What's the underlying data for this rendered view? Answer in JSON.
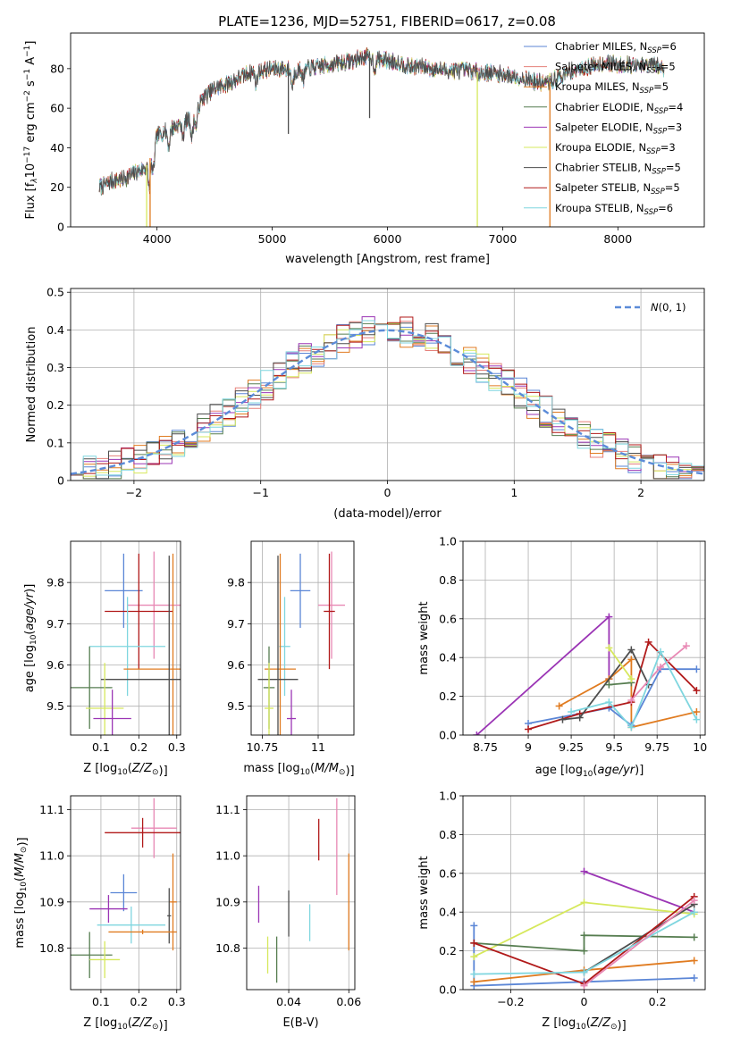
{
  "figure_title": "PLATE=1236, MJD=52751, FIBERID=0617, z=0.08",
  "colors": {
    "Chabrier MILES": "#5b86d6",
    "Salpeter MILES": "#e5807a",
    "Kroupa MILES": "#e07b20",
    "Chabrier ELODIE": "#567d50",
    "Salpeter ELODIE": "#9b35b5",
    "Kroupa ELODIE": "#d6e85c",
    "Chabrier STELIB": "#4d4d4d",
    "Salpeter STELIB": "#b11a1a",
    "Kroupa STELIB": "#7fd6df",
    "pink": "#e888b4",
    "normal_curve": "#5b8bd8",
    "grid": "#b0b0b0"
  },
  "chart_data": [
    {
      "panel": "spectrum",
      "type": "line",
      "xlabel_plain": "wavelength [Angstrom, rest frame]",
      "ylabel_parts": [
        "Flux [f",
        "λ",
        "10",
        "−17",
        " erg cm",
        "−2",
        " s",
        "−1",
        " A",
        "−1",
        "]"
      ],
      "xlim": [
        3250,
        8750
      ],
      "ylim": [
        0,
        98
      ],
      "xticks": [
        4000,
        5000,
        6000,
        7000,
        8000
      ],
      "yticks": [
        0,
        20,
        40,
        60,
        80
      ],
      "grid": false,
      "legend_position": "top-right",
      "legend": [
        {
          "label": "Chabrier MILES, N",
          "sub": "SSP",
          "suffix": "=6"
        },
        {
          "label": "Salpeter MILES, N",
          "sub": "SSP",
          "suffix": "=5"
        },
        {
          "label": "Kroupa MILES, N",
          "sub": "SSP",
          "suffix": "=5"
        },
        {
          "label": "Chabrier ELODIE, N",
          "sub": "SSP",
          "suffix": "=4"
        },
        {
          "label": "Salpeter ELODIE, N",
          "sub": "SSP",
          "suffix": "=3"
        },
        {
          "label": "Kroupa ELODIE, N",
          "sub": "SSP",
          "suffix": "=3"
        },
        {
          "label": "Chabrier STELIB, N",
          "sub": "SSP",
          "suffix": "=5"
        },
        {
          "label": "Salpeter STELIB, N",
          "sub": "SSP",
          "suffix": "=5"
        },
        {
          "label": "Kroupa STELIB, N",
          "sub": "SSP",
          "suffix": "=6"
        }
      ],
      "continuum": [
        [
          3500,
          20
        ],
        [
          3600,
          23
        ],
        [
          3700,
          24
        ],
        [
          3800,
          27
        ],
        [
          3900,
          30
        ],
        [
          3950,
          36
        ],
        [
          4000,
          46
        ],
        [
          4100,
          49
        ],
        [
          4200,
          52
        ],
        [
          4300,
          55
        ],
        [
          4400,
          65
        ],
        [
          4500,
          70
        ],
        [
          4600,
          72
        ],
        [
          4700,
          75
        ],
        [
          4800,
          78
        ],
        [
          4900,
          79
        ],
        [
          5000,
          80
        ],
        [
          5100,
          80
        ],
        [
          5200,
          79
        ],
        [
          5300,
          80
        ],
        [
          5400,
          81
        ],
        [
          5500,
          82
        ],
        [
          5600,
          83
        ],
        [
          5700,
          84
        ],
        [
          5800,
          86
        ],
        [
          5900,
          85
        ],
        [
          6000,
          84
        ],
        [
          6100,
          83
        ],
        [
          6200,
          81
        ],
        [
          6300,
          81
        ],
        [
          6400,
          80
        ],
        [
          6500,
          79
        ],
        [
          6600,
          79
        ],
        [
          6700,
          79
        ],
        [
          6800,
          78
        ],
        [
          6900,
          78
        ],
        [
          7000,
          77
        ],
        [
          7100,
          76
        ],
        [
          7200,
          75
        ],
        [
          7300,
          73
        ],
        [
          7400,
          73
        ],
        [
          7500,
          76
        ],
        [
          7600,
          79
        ],
        [
          7700,
          80
        ],
        [
          7800,
          82
        ],
        [
          7900,
          83
        ],
        [
          8000,
          82
        ],
        [
          8100,
          82
        ],
        [
          8200,
          81
        ],
        [
          8300,
          82
        ],
        [
          8400,
          80
        ]
      ],
      "spikes": [
        {
          "x": 3910,
          "y_min": 0,
          "series": "Kroupa ELODIE"
        },
        {
          "x": 3940,
          "y_min": 0,
          "series": "Kroupa MILES"
        },
        {
          "x": 5140,
          "y_min": 47,
          "series": "Chabrier STELIB"
        },
        {
          "x": 5845,
          "y_min": 55,
          "series": "Chabrier STELIB"
        },
        {
          "x": 6780,
          "y_min": 0,
          "series": "Kroupa ELODIE"
        },
        {
          "x": 7410,
          "y_min": 0,
          "series": "Kroupa MILES"
        }
      ]
    },
    {
      "panel": "residuals",
      "type": "histogram",
      "xlabel": "(data-model)/error",
      "ylabel": "Normed distribution",
      "xlim": [
        -2.5,
        2.5
      ],
      "ylim": [
        0,
        0.51
      ],
      "xticks": [
        -2,
        -1,
        0,
        1,
        2
      ],
      "yticks": [
        0.0,
        0.1,
        0.2,
        0.3,
        0.4,
        0.5
      ],
      "bin_width": 0.1,
      "grid": true,
      "legend_position": "top-right",
      "legend_label": "N(0, 1)",
      "normal_mean": 0,
      "normal_sigma": 1
    },
    {
      "panel": "age_vs_Z",
      "type": "errorbar",
      "xlabel": "Z [log10(Z/Z⊙)]",
      "ylabel": "age [log10(age/yr)]",
      "xlim": [
        0.02,
        0.31
      ],
      "ylim": [
        9.43,
        9.9
      ],
      "xticks": [
        0.1,
        0.2,
        0.3
      ],
      "yticks": [
        9.5,
        9.6,
        9.7,
        9.8
      ],
      "grid": true,
      "points": [
        {
          "c": "#5b86d6",
          "x": 0.16,
          "xerr": 0.05,
          "y": 9.78,
          "yerr": 0.09
        },
        {
          "c": "#e888b4",
          "x": 0.24,
          "xerr": 0.07,
          "y": 9.745,
          "yerr": 0.13
        },
        {
          "c": "#b11a1a",
          "x": 0.2,
          "xerr": 0.09,
          "y": 9.73,
          "yerr": 0.14
        },
        {
          "c": "#7fd6df",
          "x": 0.17,
          "xerr": 0.1,
          "y": 9.645,
          "yerr": 0.12
        },
        {
          "c": "#e07b20",
          "x": 0.29,
          "xerr": 0.13,
          "y": 9.59,
          "yerr": 0.28
        },
        {
          "c": "#4d4d4d",
          "x": 0.28,
          "xerr": 0.18,
          "y": 9.565,
          "yerr": 0.3
        },
        {
          "c": "#567d50",
          "x": 0.07,
          "xerr": 0.06,
          "y": 9.545,
          "yerr": 0.1
        },
        {
          "c": "#d6e85c",
          "x": 0.11,
          "xerr": 0.05,
          "y": 9.495,
          "yerr": 0.11
        },
        {
          "c": "#9b35b5",
          "x": 0.13,
          "xerr": 0.05,
          "y": 9.47,
          "yerr": 0.07
        }
      ]
    },
    {
      "panel": "age_vs_mass",
      "type": "errorbar",
      "xlabel": "mass [log10(M/M⊙)]",
      "xlim": [
        10.7,
        11.16
      ],
      "ylim": [
        9.43,
        9.9
      ],
      "xticks": [
        10.75,
        11.0
      ],
      "yticks": [
        9.5,
        9.6,
        9.7,
        9.8
      ],
      "grid": true,
      "points": [
        {
          "c": "#5b86d6",
          "x": 10.92,
          "xerr": 0.045,
          "y": 9.78,
          "yerr": 0.09
        },
        {
          "c": "#e888b4",
          "x": 11.06,
          "xerr": 0.06,
          "y": 9.745,
          "yerr": 0.13
        },
        {
          "c": "#b11a1a",
          "x": 11.05,
          "xerr": 0.025,
          "y": 9.73,
          "yerr": 0.14
        },
        {
          "c": "#7fd6df",
          "x": 10.85,
          "xerr": 0.025,
          "y": 9.645,
          "yerr": 0.12
        },
        {
          "c": "#e07b20",
          "x": 10.83,
          "xerr": 0.07,
          "y": 9.59,
          "yerr": 0.28
        },
        {
          "c": "#4d4d4d",
          "x": 10.82,
          "xerr": 0.09,
          "y": 9.565,
          "yerr": 0.3
        },
        {
          "c": "#567d50",
          "x": 10.78,
          "xerr": 0.025,
          "y": 9.545,
          "yerr": 0.1
        },
        {
          "c": "#d6e85c",
          "x": 10.78,
          "xerr": 0.02,
          "y": 9.495,
          "yerr": 0.11
        },
        {
          "c": "#9b35b5",
          "x": 10.88,
          "xerr": 0.02,
          "y": 9.47,
          "yerr": 0.07
        }
      ]
    },
    {
      "panel": "weight_vs_age",
      "type": "line",
      "xlabel": "age [log10(age/yr)]",
      "ylabel": "mass weight",
      "xlim": [
        8.62,
        10.03
      ],
      "ylim": [
        0,
        1
      ],
      "xticks": [
        8.75,
        9.0,
        9.25,
        9.5,
        9.75,
        10.0
      ],
      "yticks": [
        0.0,
        0.2,
        0.4,
        0.6,
        0.8,
        1.0
      ],
      "grid": true,
      "series": [
        {
          "c": "#9b35b5",
          "x": [
            8.7,
            9.47,
            9.47
          ],
          "y": [
            0.0,
            0.61,
            0.29
          ]
        },
        {
          "c": "#e07b20",
          "x": [
            9.18,
            9.47,
            9.6,
            9.6,
            9.98
          ],
          "y": [
            0.15,
            0.29,
            0.39,
            0.04,
            0.12
          ]
        },
        {
          "c": "#5b86d6",
          "x": [
            9.0,
            9.47,
            9.6,
            9.77,
            9.98
          ],
          "y": [
            0.06,
            0.14,
            0.05,
            0.34,
            0.34
          ]
        },
        {
          "c": "#b11a1a",
          "x": [
            9.0,
            9.3,
            9.6,
            9.7,
            9.98
          ],
          "y": [
            0.03,
            0.11,
            0.17,
            0.48,
            0.23
          ]
        },
        {
          "c": "#4d4d4d",
          "x": [
            9.2,
            9.3,
            9.6,
            9.7
          ],
          "y": [
            0.08,
            0.09,
            0.44,
            0.26
          ]
        },
        {
          "c": "#567d50",
          "x": [
            9.47,
            9.6
          ],
          "y": [
            0.26,
            0.27
          ]
        },
        {
          "c": "#e888b4",
          "x": [
            9.6,
            9.77,
            9.92
          ],
          "y": [
            0.18,
            0.35,
            0.46
          ]
        },
        {
          "c": "#d6e85c",
          "x": [
            9.47,
            9.6
          ],
          "y": [
            0.45,
            0.29
          ]
        },
        {
          "c": "#7fd6df",
          "x": [
            9.25,
            9.47,
            9.6,
            9.77,
            9.98
          ],
          "y": [
            0.12,
            0.17,
            0.04,
            0.43,
            0.08
          ]
        }
      ]
    },
    {
      "panel": "mass_vs_Z",
      "type": "errorbar",
      "xlabel": "Z [log10(Z/Z⊙)]",
      "ylabel": "mass [log10(M/M⊙)]",
      "xlim": [
        0.02,
        0.31
      ],
      "ylim": [
        10.71,
        11.13
      ],
      "xticks": [
        0.1,
        0.2,
        0.3
      ],
      "yticks": [
        10.8,
        10.9,
        11.0,
        11.1
      ],
      "grid": true,
      "points": [
        {
          "c": "#e888b4",
          "x": 0.24,
          "xerr": 0.06,
          "y": 11.06,
          "yerr": 0.065
        },
        {
          "c": "#b11a1a",
          "x": 0.21,
          "xerr": 0.1,
          "y": 11.05,
          "yerr": 0.032
        },
        {
          "c": "#e07b20",
          "x": 0.29,
          "xerr": 0.01,
          "y": 10.9,
          "yerr": 0.105
        },
        {
          "c": "#5b86d6",
          "x": 0.16,
          "xerr": 0.035,
          "y": 10.92,
          "yerr": 0.04
        },
        {
          "c": "#9b35b5",
          "x": 0.12,
          "xerr": 0.05,
          "y": 10.885,
          "yerr": 0.03
        },
        {
          "c": "#4d4d4d",
          "x": 0.28,
          "xerr": 0.005,
          "y": 10.87,
          "yerr": 0.06
        },
        {
          "c": "#7fd6df",
          "x": 0.18,
          "xerr": 0.09,
          "y": 10.85,
          "yerr": 0.04
        },
        {
          "c": "#e07b20",
          "x": 0.21,
          "xerr": 0.09,
          "y": 10.835,
          "yerr": 0.005
        },
        {
          "c": "#567d50",
          "x": 0.07,
          "xerr": 0.06,
          "y": 10.785,
          "yerr": 0.05
        },
        {
          "c": "#d6e85c",
          "x": 0.11,
          "xerr": 0.04,
          "y": 10.775,
          "yerr": 0.04
        }
      ]
    },
    {
      "panel": "mass_vs_ebv",
      "type": "errorbar",
      "xlabel": "E(B-V)",
      "xlim": [
        0.026,
        0.062
      ],
      "ylim": [
        10.71,
        11.13
      ],
      "xticks": [
        0.04,
        0.06
      ],
      "yticks": [
        10.8,
        10.9,
        11.0,
        11.1
      ],
      "grid": true,
      "points": [
        {
          "c": "#e888b4",
          "x": 0.056,
          "y": 11.02,
          "yerr": 0.105
        },
        {
          "c": "#b11a1a",
          "x": 0.05,
          "y": 11.035,
          "yerr": 0.045
        },
        {
          "c": "#e07b20",
          "x": 0.06,
          "y": 10.9,
          "yerr": 0.105
        },
        {
          "c": "#9b35b5",
          "x": 0.03,
          "y": 10.895,
          "yerr": 0.04
        },
        {
          "c": "#4d4d4d",
          "x": 0.04,
          "y": 10.875,
          "yerr": 0.05
        },
        {
          "c": "#7fd6df",
          "x": 0.047,
          "y": 10.855,
          "yerr": 0.04
        },
        {
          "c": "#d6e85c",
          "x": 0.033,
          "y": 10.785,
          "yerr": 0.04
        },
        {
          "c": "#567d50",
          "x": 0.036,
          "y": 10.775,
          "yerr": 0.05
        }
      ]
    },
    {
      "panel": "weight_vs_Z",
      "type": "line",
      "xlabel": "Z [log10(Z/Z⊙)]",
      "ylabel": "mass weight",
      "xlim": [
        -0.33,
        0.33
      ],
      "ylim": [
        0,
        1
      ],
      "xticks": [
        -0.2,
        0.0,
        0.2
      ],
      "yticks": [
        0.0,
        0.2,
        0.4,
        0.6,
        0.8,
        1.0
      ],
      "grid": true,
      "series": [
        {
          "c": "#9b35b5",
          "x": [
            0.0,
            0.3
          ],
          "y": [
            0.61,
            0.4
          ]
        },
        {
          "c": "#5b86d6",
          "x": [
            -0.3,
            -0.3,
            0.0,
            0.3
          ],
          "y": [
            0.33,
            0.02,
            0.04,
            0.06
          ]
        },
        {
          "c": "#e07b20",
          "x": [
            -0.3,
            0.0,
            0.3
          ],
          "y": [
            0.04,
            0.1,
            0.15
          ]
        },
        {
          "c": "#d6e85c",
          "x": [
            -0.3,
            0.0,
            0.3
          ],
          "y": [
            0.17,
            0.45,
            0.39
          ]
        },
        {
          "c": "#567d50",
          "x": [
            -0.3,
            0.0,
            0.0,
            0.3
          ],
          "y": [
            0.24,
            0.2,
            0.28,
            0.27
          ]
        },
        {
          "c": "#4d4d4d",
          "x": [
            0.0,
            0.3
          ],
          "y": [
            0.09,
            0.44
          ]
        },
        {
          "c": "#b11a1a",
          "x": [
            -0.3,
            0.0,
            0.3
          ],
          "y": [
            0.24,
            0.03,
            0.48
          ]
        },
        {
          "c": "#7fd6df",
          "x": [
            -0.3,
            0.0,
            0.3
          ],
          "y": [
            0.08,
            0.09,
            0.4
          ]
        },
        {
          "c": "#e888b4",
          "x": [
            0.0,
            0.3
          ],
          "y": [
            0.02,
            0.46
          ]
        }
      ]
    }
  ]
}
